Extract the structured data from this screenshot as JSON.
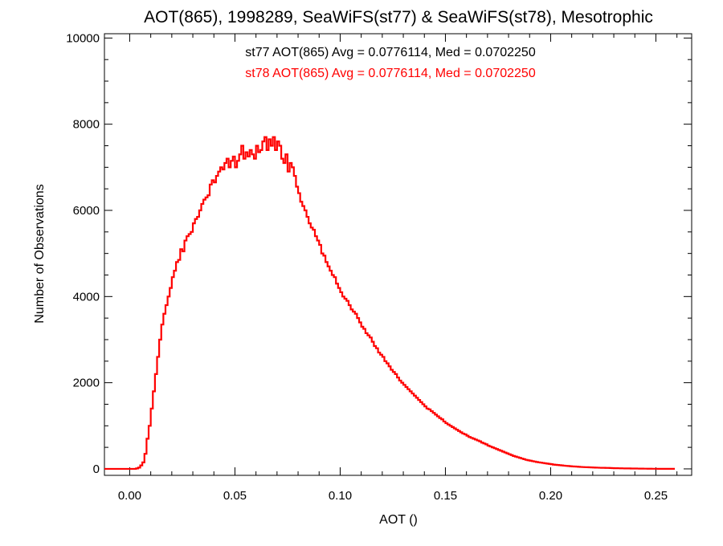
{
  "chart_data": {
    "type": "bar",
    "title": "AOT(865), 1998289, SeaWiFS(st77) & SeaWiFS(st78), Mesotrophic",
    "xlabel": "AOT ()",
    "ylabel": "Number of Observations",
    "xlim": [
      -0.012,
      0.267
    ],
    "ylim": [
      -150,
      10100
    ],
    "xticks": [
      "0.00",
      "0.05",
      "0.10",
      "0.15",
      "0.20",
      "0.25"
    ],
    "xtick_values": [
      0.0,
      0.05,
      0.1,
      0.15,
      0.2,
      0.25
    ],
    "yticks": [
      "0",
      "2000",
      "4000",
      "6000",
      "8000",
      "10000"
    ],
    "ytick_values": [
      0,
      2000,
      4000,
      6000,
      8000,
      10000
    ],
    "grid": false,
    "bin_width": 0.001,
    "bin_start": -0.012,
    "annotations": [
      {
        "text": "st77 AOT(865) Avg = 0.0776114, Med = 0.0702250",
        "color": "#000000"
      },
      {
        "text": "st78 AOT(865) Avg = 0.0776114, Med = 0.0702250",
        "color": "#ff0000"
      }
    ],
    "series": [
      {
        "color": "#ff0000",
        "values": [
          0,
          0,
          0,
          0,
          0,
          0,
          0,
          0,
          0,
          0,
          0,
          0,
          0,
          0,
          0,
          10,
          30,
          80,
          150,
          350,
          700,
          1000,
          1400,
          1800,
          2200,
          2600,
          3000,
          3350,
          3600,
          3800,
          4000,
          4200,
          4450,
          4600,
          4800,
          4850,
          5100,
          5050,
          5300,
          5400,
          5450,
          5500,
          5700,
          5800,
          5850,
          6000,
          6150,
          6250,
          6300,
          6350,
          6600,
          6700,
          6650,
          6800,
          6900,
          7000,
          6950,
          7100,
          7200,
          7000,
          7150,
          7250,
          7000,
          7150,
          7300,
          7500,
          7200,
          7350,
          7250,
          7400,
          7300,
          7200,
          7500,
          7350,
          7400,
          7600,
          7700,
          7400,
          7650,
          7500,
          7700,
          7400,
          7600,
          7500,
          7200,
          7100,
          7300,
          6900,
          7100,
          7000,
          6800,
          6550,
          6400,
          6200,
          6100,
          6000,
          5850,
          5700,
          5600,
          5550,
          5400,
          5300,
          5200,
          5000,
          4950,
          4800,
          4700,
          4600,
          4500,
          4450,
          4300,
          4200,
          4100,
          4000,
          3950,
          3900,
          3800,
          3700,
          3650,
          3600,
          3500,
          3400,
          3300,
          3250,
          3150,
          3100,
          3050,
          2950,
          2850,
          2800,
          2700,
          2650,
          2600,
          2500,
          2450,
          2380,
          2300,
          2250,
          2200,
          2120,
          2050,
          2000,
          1950,
          1900,
          1850,
          1800,
          1750,
          1700,
          1650,
          1600,
          1550,
          1500,
          1450,
          1400,
          1380,
          1340,
          1300,
          1260,
          1220,
          1180,
          1150,
          1100,
          1060,
          1030,
          1000,
          970,
          940,
          910,
          880,
          850,
          820,
          800,
          770,
          740,
          720,
          700,
          680,
          660,
          640,
          610,
          590,
          570,
          540,
          520,
          500,
          480,
          460,
          440,
          420,
          400,
          380,
          360,
          340,
          320,
          300,
          285,
          270,
          255,
          240,
          225,
          210,
          200,
          190,
          180,
          170,
          160,
          152,
          145,
          138,
          130,
          122,
          115,
          108,
          100,
          95,
          90,
          85,
          80,
          75,
          70,
          66,
          62,
          58,
          55,
          52,
          48,
          45,
          42,
          40,
          38,
          36,
          34,
          32,
          30,
          28,
          26,
          25,
          24,
          23,
          22,
          20,
          18,
          16,
          15,
          14,
          13,
          12,
          11,
          10,
          10,
          9,
          8,
          8,
          7,
          6,
          6,
          5,
          5,
          4,
          4,
          3,
          3,
          3,
          2,
          2,
          2,
          1,
          1,
          1,
          1,
          1
        ]
      }
    ]
  }
}
